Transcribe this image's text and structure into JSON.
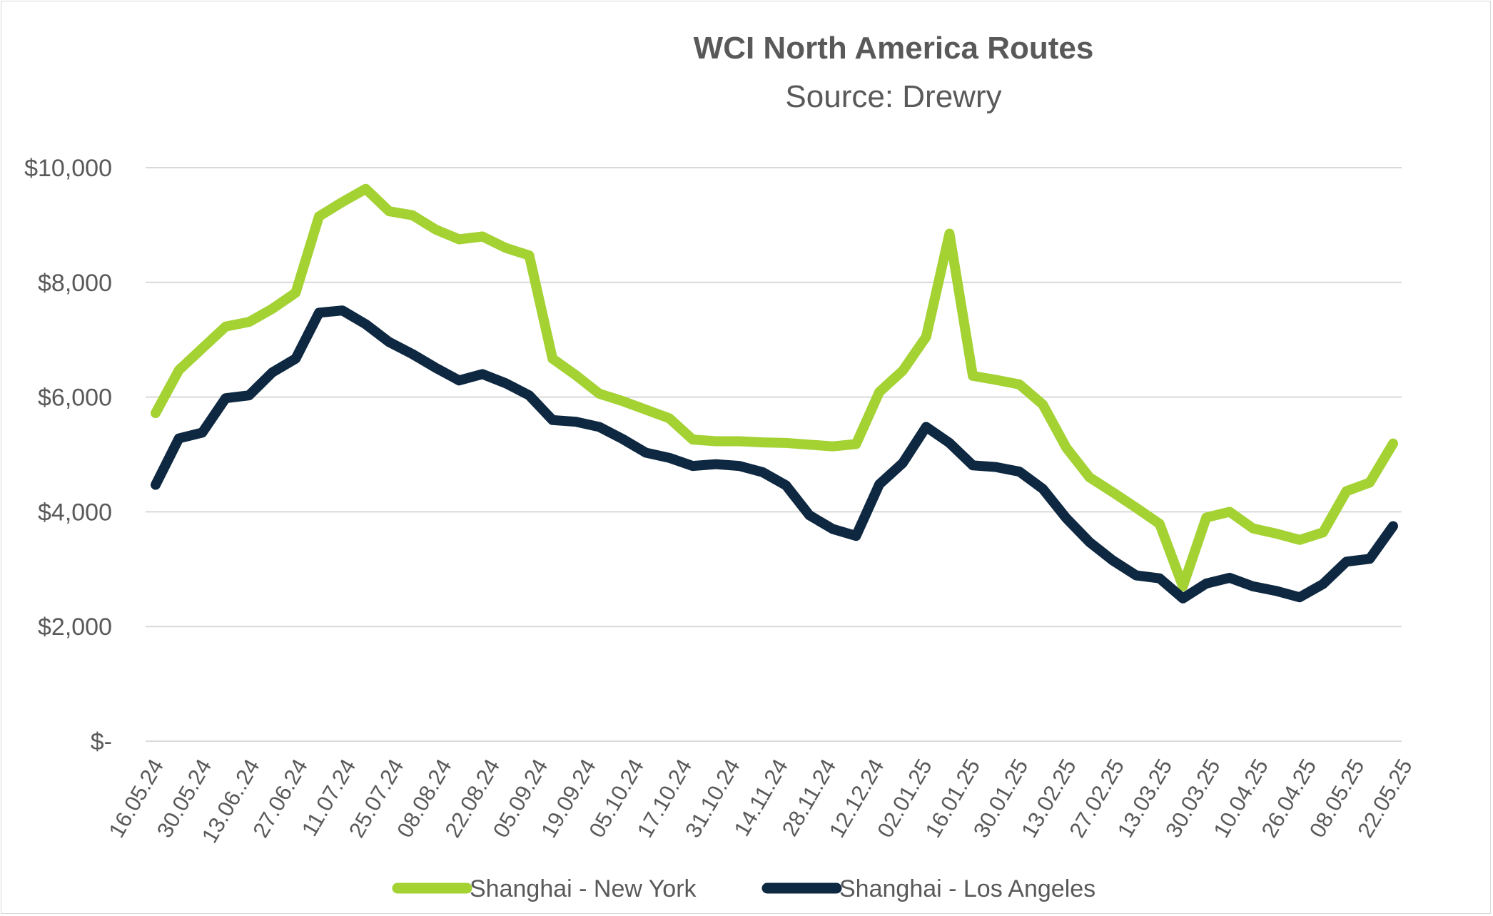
{
  "chart_data": {
    "type": "line",
    "title": "WCI North America Routes",
    "subtitle": "Source: Drewry",
    "xlabel": "",
    "ylabel": "",
    "ylim": [
      0,
      10000
    ],
    "yticks": [
      0,
      2000,
      4000,
      6000,
      8000,
      10000
    ],
    "ytick_labels": [
      "$-",
      "$2,000",
      "$4,000",
      "$6,000",
      "$8,000",
      "$10,000"
    ],
    "grid": true,
    "legend_position": "bottom",
    "x_tick_labels": [
      "16.05.24",
      "30.05.24",
      "13.06..24",
      "27.06.24",
      "11.07.24",
      "25.07.24",
      "08.08.24",
      "22.08.24",
      "05.09.24",
      "19.09.24",
      "05.10.24",
      "17.10.24",
      "31.10.24",
      "14.11.24",
      "28.11.24",
      "12.12.24",
      "02.01.25",
      "16.01.25",
      "30.01.25",
      "13.02.25",
      "27.02.25",
      "13.03.25",
      "30.03.25",
      "10.04.25",
      "26.04.25",
      "08.05.25",
      "22.05.25"
    ],
    "series": [
      {
        "name": "Shanghai - New York",
        "color": "#a4d233",
        "values": [
          5720,
          6470,
          6850,
          7230,
          7310,
          7540,
          7820,
          9150,
          9400,
          9630,
          9240,
          9170,
          8920,
          8750,
          8800,
          8600,
          8470,
          6670,
          6380,
          6060,
          5930,
          5780,
          5630,
          5260,
          5230,
          5230,
          5210,
          5200,
          5170,
          5140,
          5180,
          6090,
          6460,
          7050,
          8850,
          6370,
          6300,
          6220,
          5870,
          5120,
          4600,
          4340,
          4070,
          3790,
          2700,
          3900,
          4000,
          3710,
          3620,
          3510,
          3640,
          4360,
          4510,
          5190
        ]
      },
      {
        "name": "Shanghai - Los Angeles",
        "color": "#0e2841",
        "values": [
          4470,
          5280,
          5380,
          5980,
          6030,
          6430,
          6670,
          7470,
          7510,
          7270,
          6960,
          6750,
          6510,
          6290,
          6400,
          6240,
          6030,
          5600,
          5570,
          5480,
          5270,
          5030,
          4940,
          4800,
          4830,
          4800,
          4690,
          4460,
          3940,
          3700,
          3580,
          4480,
          4850,
          5480,
          5200,
          4810,
          4780,
          4700,
          4400,
          3890,
          3470,
          3150,
          2890,
          2840,
          2490,
          2750,
          2850,
          2700,
          2620,
          2510,
          2740,
          3130,
          3180,
          3750
        ]
      }
    ]
  }
}
